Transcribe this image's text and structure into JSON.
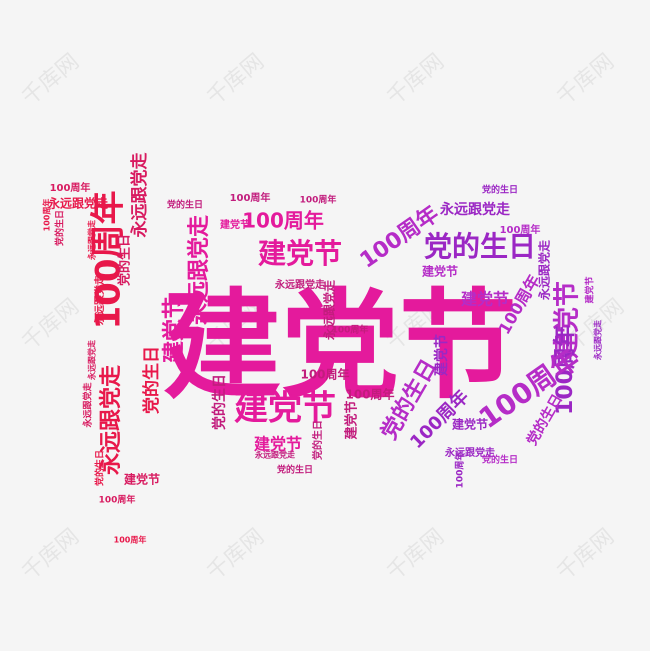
{
  "phrases": {
    "main": "建党节",
    "hundred": "100周年",
    "follow": "永远跟党走",
    "birthday": "党的生日"
  },
  "watermark": {
    "text": "千库网"
  },
  "colors": {
    "red": "#e8184a",
    "crimson": "#d81b60",
    "magenta": "#e41a9c",
    "pink": "#c21d7d",
    "purple": "#9b27c4",
    "violet": "#b52cc7",
    "watermark": "#d9d9d9"
  }
}
